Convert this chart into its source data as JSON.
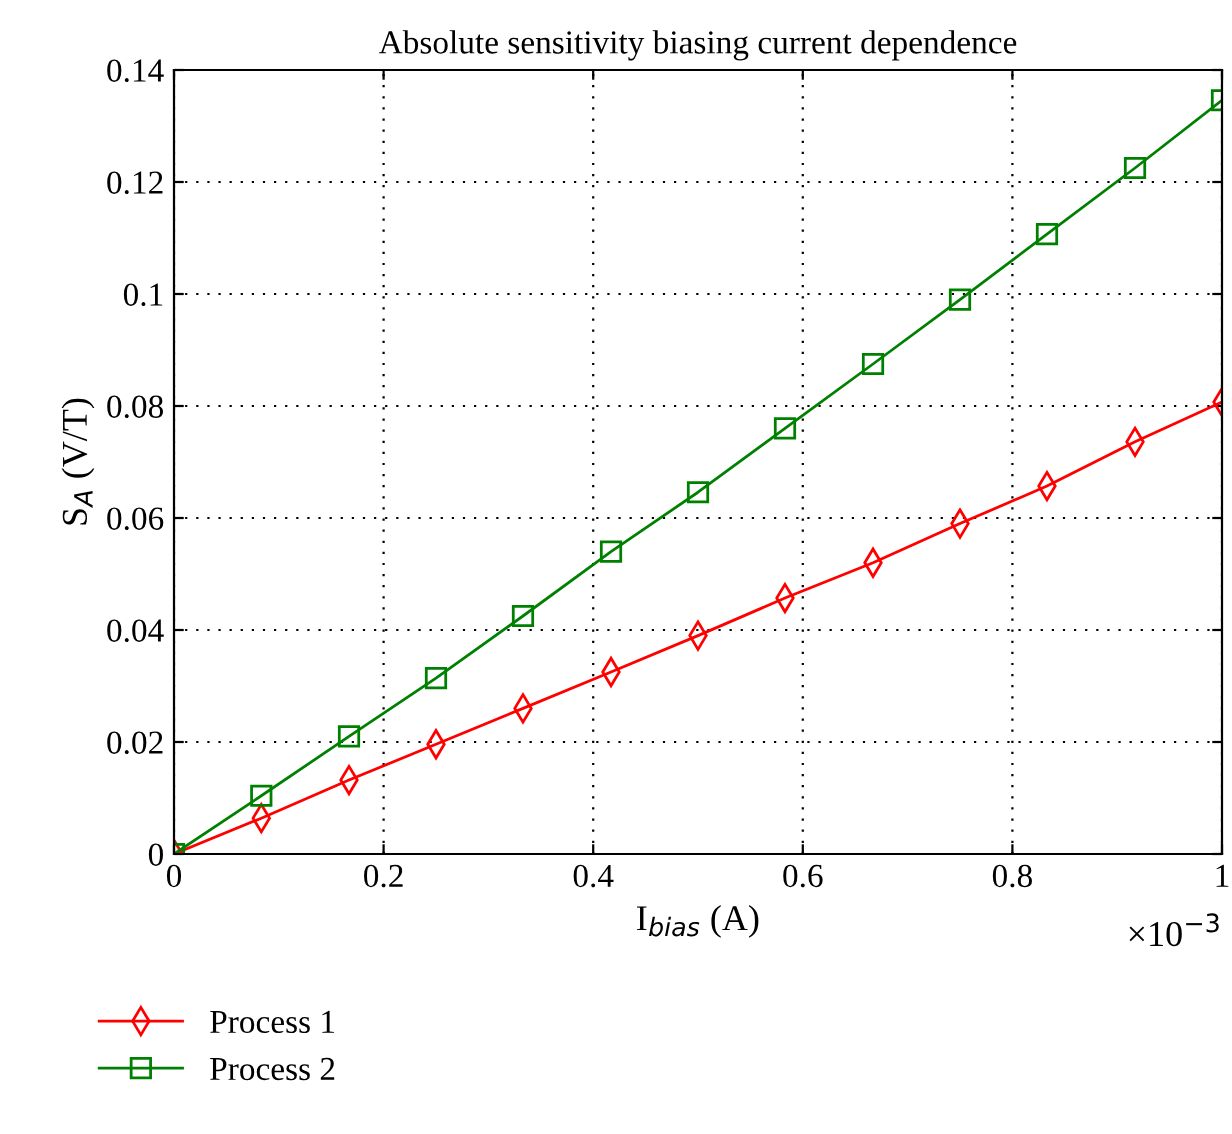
{
  "chart_data": {
    "type": "line",
    "title": "Absolute sensitivity biasing current dependence",
    "xlabel": "I$_{bias}$ (A)",
    "ylabel": "S$_{A}$ (V/T)",
    "x": [
      0,
      0.0833,
      0.167,
      0.25,
      0.333,
      0.417,
      0.5,
      0.583,
      0.667,
      0.75,
      0.833,
      0.917,
      1
    ],
    "series": [
      {
        "name": "Process 1",
        "color": "#ff0000",
        "marker": "diamond",
        "values": [
          0,
          0.0064,
          0.0132,
          0.0196,
          0.026,
          0.0325,
          0.039,
          0.0457,
          0.052,
          0.059,
          0.0657,
          0.0736,
          0.0807
        ]
      },
      {
        "name": "Process 2",
        "color": "#008000",
        "marker": "square",
        "values": [
          0,
          0.0104,
          0.021,
          0.0314,
          0.0425,
          0.054,
          0.0646,
          0.076,
          0.0875,
          0.099,
          0.1107,
          0.1225,
          0.1346
        ]
      }
    ],
    "xlim": [
      0,
      1
    ],
    "xticks": [
      0,
      0.2,
      0.4,
      0.6,
      0.8,
      1
    ],
    "ylim": [
      0,
      0.14
    ],
    "yticks": [
      0,
      0.02,
      0.04,
      0.06,
      0.08,
      0.1,
      0.12,
      0.14
    ],
    "annotations": [
      "×10$^{−3}$"
    ],
    "grid": true,
    "legend": "bottom",
    "line_style": "solid"
  }
}
